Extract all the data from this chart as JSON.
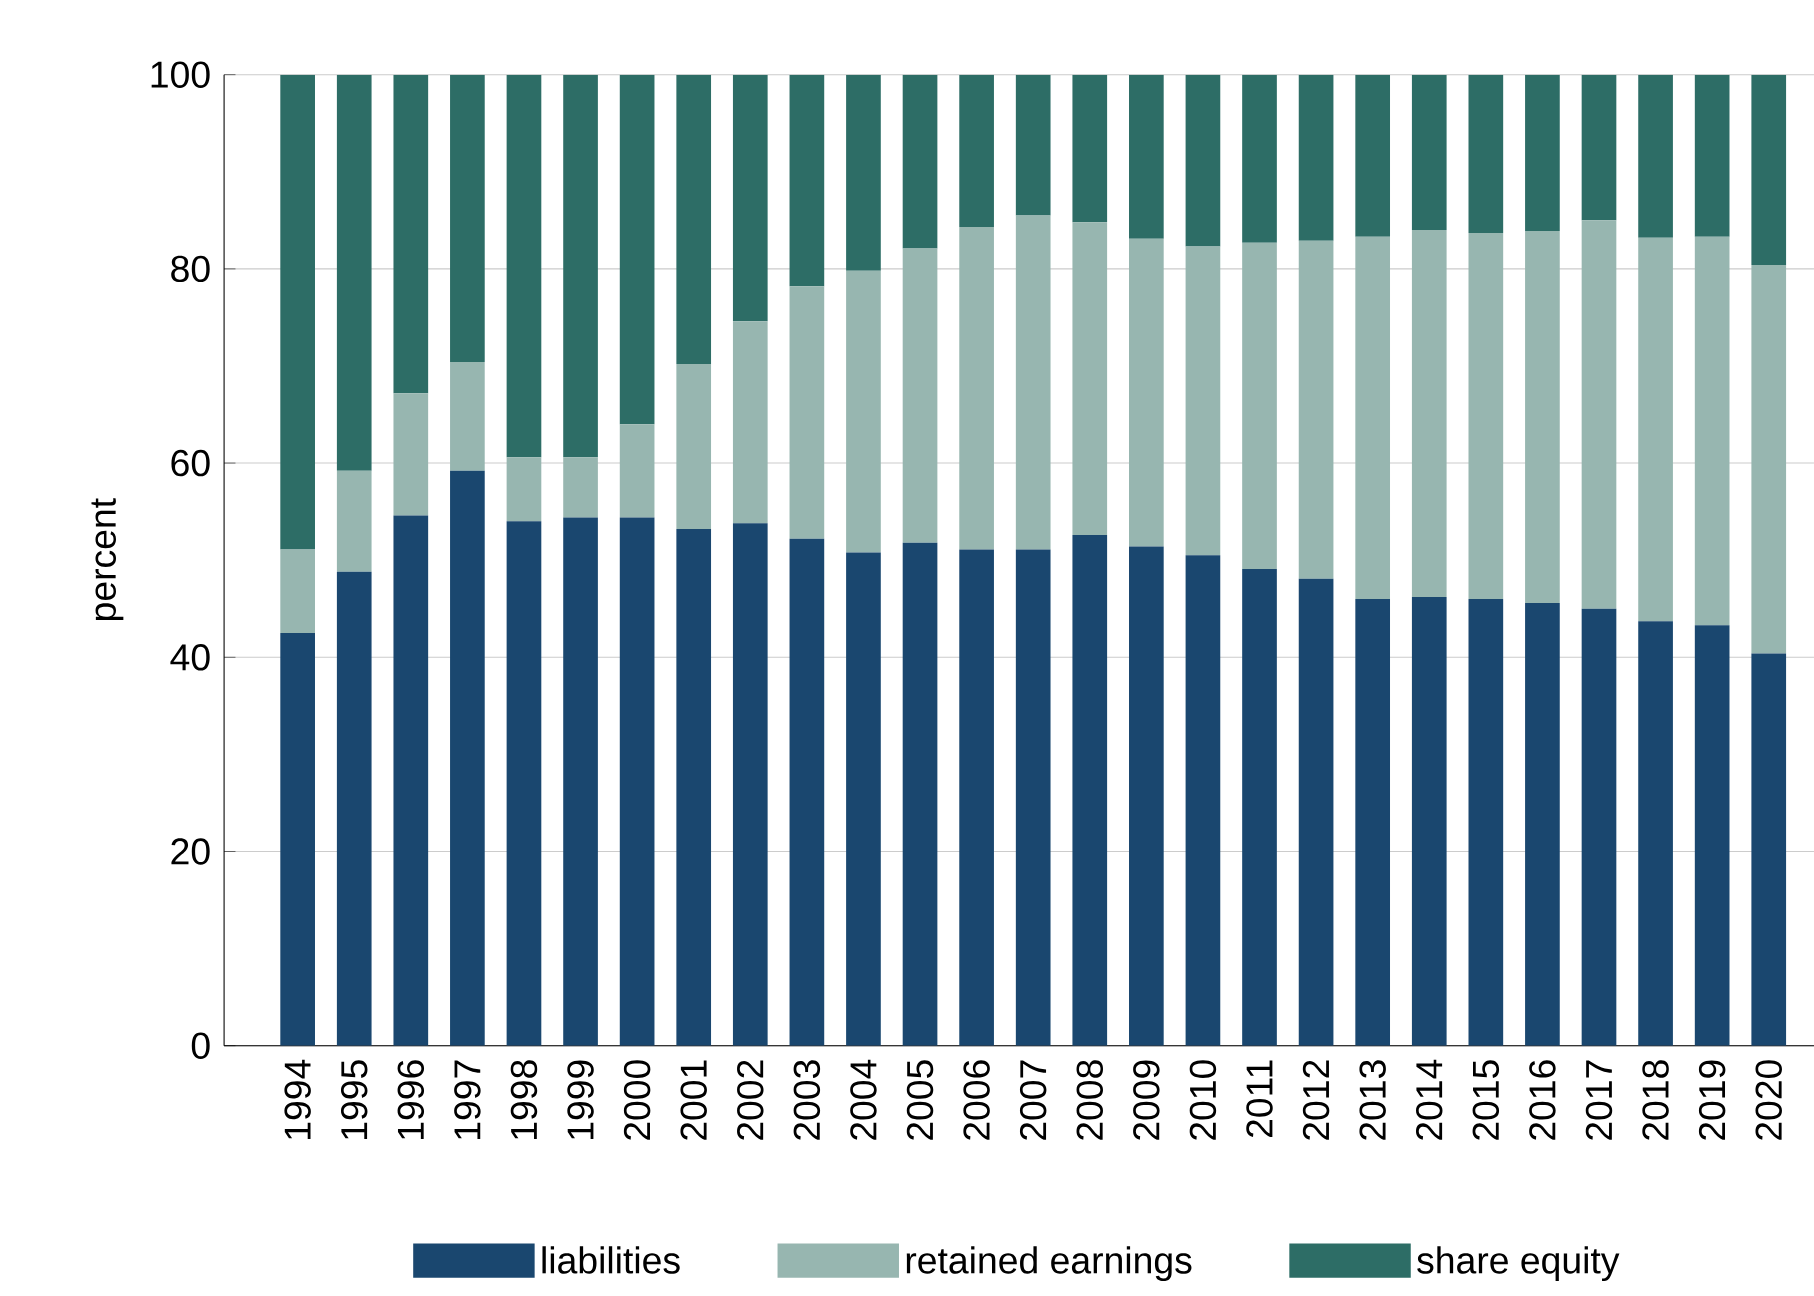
{
  "chart_data": {
    "type": "bar",
    "stacked": true,
    "ylabel": "percent",
    "ylim": [
      0,
      100
    ],
    "yticks": [
      0,
      20,
      40,
      60,
      80,
      100
    ],
    "grid": "y",
    "legend": "bottom",
    "categories": [
      "1994",
      "1995",
      "1996",
      "1997",
      "1998",
      "1999",
      "2000",
      "2001",
      "2002",
      "2003",
      "2004",
      "2005",
      "2006",
      "2007",
      "2008",
      "2009",
      "2010",
      "2011",
      "2012",
      "2013",
      "2014",
      "2015",
      "2016",
      "2017",
      "2018",
      "2019",
      "2020"
    ],
    "series": [
      {
        "name": "liabilities",
        "color": "#1a476f",
        "values": [
          42.5,
          48.8,
          54.6,
          59.2,
          54.0,
          54.4,
          54.4,
          53.2,
          53.8,
          52.2,
          50.8,
          51.8,
          51.1,
          51.1,
          52.6,
          51.4,
          50.5,
          49.1,
          48.1,
          46.0,
          46.2,
          46.0,
          45.6,
          45.0,
          43.7,
          43.3,
          40.4
        ]
      },
      {
        "name": "retained earnings",
        "color": "#97b6b0",
        "values": [
          8.6,
          10.4,
          12.6,
          11.2,
          6.6,
          6.2,
          9.6,
          17.0,
          20.8,
          26.0,
          29.0,
          30.3,
          33.2,
          34.4,
          32.2,
          31.7,
          31.8,
          33.6,
          34.8,
          37.3,
          37.8,
          37.7,
          38.3,
          40.0,
          39.5,
          40.0,
          40.0
        ]
      },
      {
        "name": "share equity",
        "color": "#2d6d66",
        "values": [
          48.9,
          40.8,
          32.8,
          29.6,
          39.4,
          39.4,
          36.0,
          29.8,
          25.4,
          21.8,
          20.2,
          17.9,
          15.7,
          14.5,
          15.2,
          16.9,
          17.7,
          17.3,
          17.1,
          16.7,
          16.0,
          16.3,
          16.1,
          15.0,
          16.8,
          16.7,
          19.6
        ]
      }
    ]
  }
}
